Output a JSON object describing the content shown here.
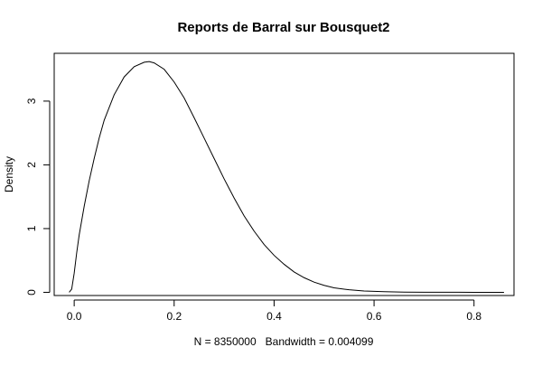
{
  "chart_data": {
    "type": "line",
    "title": "Reports de Barral sur Bousquet2",
    "xlabel": "N = 8350000   Bandwidth = 0.004099",
    "ylabel": "Density",
    "xlim": [
      -0.04,
      0.88
    ],
    "ylim": [
      -0.05,
      3.75
    ],
    "x_ticks": [
      0.0,
      0.2,
      0.4,
      0.6,
      0.8
    ],
    "x_tick_labels": [
      "0.0",
      "0.2",
      "0.4",
      "0.6",
      "0.8"
    ],
    "y_ticks": [
      0,
      1,
      2,
      3
    ],
    "y_tick_labels": [
      "0",
      "1",
      "2",
      "3"
    ],
    "grid": false,
    "box": true,
    "series": [
      {
        "color": "#000000",
        "x": [
          -0.01,
          -0.005,
          0.0,
          0.005,
          0.01,
          0.02,
          0.03,
          0.04,
          0.05,
          0.06,
          0.08,
          0.1,
          0.12,
          0.14,
          0.15,
          0.16,
          0.18,
          0.2,
          0.22,
          0.24,
          0.26,
          0.28,
          0.3,
          0.32,
          0.34,
          0.36,
          0.38,
          0.4,
          0.42,
          0.44,
          0.46,
          0.48,
          0.5,
          0.52,
          0.55,
          0.58,
          0.62,
          0.66,
          0.7,
          0.75,
          0.8,
          0.86
        ],
        "y": [
          0.0,
          0.05,
          0.3,
          0.62,
          0.9,
          1.35,
          1.75,
          2.1,
          2.42,
          2.7,
          3.1,
          3.38,
          3.54,
          3.61,
          3.62,
          3.6,
          3.5,
          3.3,
          3.05,
          2.74,
          2.42,
          2.1,
          1.78,
          1.48,
          1.2,
          0.96,
          0.75,
          0.58,
          0.44,
          0.32,
          0.23,
          0.16,
          0.11,
          0.07,
          0.04,
          0.02,
          0.01,
          0.004,
          0.002,
          0.001,
          0.0,
          0.0
        ]
      }
    ]
  }
}
